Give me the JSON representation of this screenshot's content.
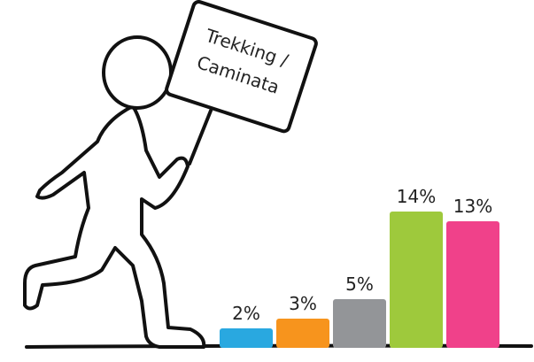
{
  "chart_data": {
    "type": "bar",
    "annotations": [
      "Trekking /",
      "Caminata"
    ],
    "categories": [
      null,
      null,
      null,
      null,
      null
    ],
    "values": [
      2,
      3,
      5,
      14,
      13
    ],
    "value_labels": [
      "2%",
      "3%",
      "5%",
      "14%",
      "13%"
    ],
    "colors": [
      "#29a8e0",
      "#f7941d",
      "#939598",
      "#9ec93c",
      "#f0418a"
    ]
  }
}
